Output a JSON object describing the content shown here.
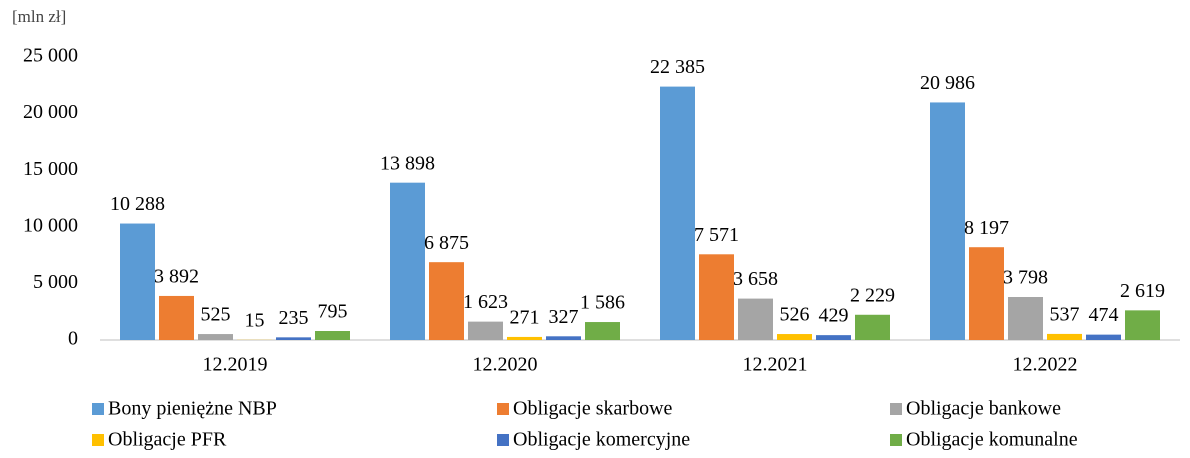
{
  "chart_data": {
    "type": "bar",
    "y_label": "[mln zł]",
    "categories": [
      "12.2019",
      "12.2020",
      "12.2021",
      "12.2022"
    ],
    "series": [
      {
        "name": "Bony pieniężne NBP",
        "color": "#5b9bd5",
        "values": [
          10288,
          13898,
          22385,
          20986
        ],
        "value_labels": [
          "10 288",
          "13 898",
          "22 385",
          "20 986"
        ]
      },
      {
        "name": "Obligacje skarbowe",
        "color": "#ed7d31",
        "values": [
          3892,
          6875,
          7571,
          8197
        ],
        "value_labels": [
          "3 892",
          "6 875",
          "7 571",
          "8 197"
        ]
      },
      {
        "name": "Obligacje bankowe",
        "color": "#a5a5a5",
        "values": [
          525,
          1623,
          3658,
          3798
        ],
        "value_labels": [
          "525",
          "1 623",
          "3 658",
          "3 798"
        ]
      },
      {
        "name": "Obligacje PFR",
        "color": "#ffc000",
        "values": [
          15,
          271,
          526,
          537
        ]
      },
      {
        "name": "Obligacje komercyjne",
        "color": "#4472c4",
        "values": [
          235,
          327,
          429,
          474
        ]
      },
      {
        "name": "Obligacje komunalne",
        "color": "#70ad47",
        "values": [
          795,
          1586,
          2229,
          2619
        ],
        "value_labels": [
          "795",
          "1 586",
          "2 229",
          "2 619"
        ]
      }
    ],
    "ylim": [
      0,
      25000
    ],
    "yticks": [
      0,
      {
        "value": 5000,
        "label": "5 000"
      },
      {
        "value": 10000,
        "label": "10 000"
      },
      {
        "value": 15000,
        "label": "15 000"
      },
      {
        "value": 20000,
        "label": "20 000"
      },
      {
        "value": 25000,
        "label": "25 000"
      }
    ],
    "grid": false,
    "legend": "bottom"
  }
}
